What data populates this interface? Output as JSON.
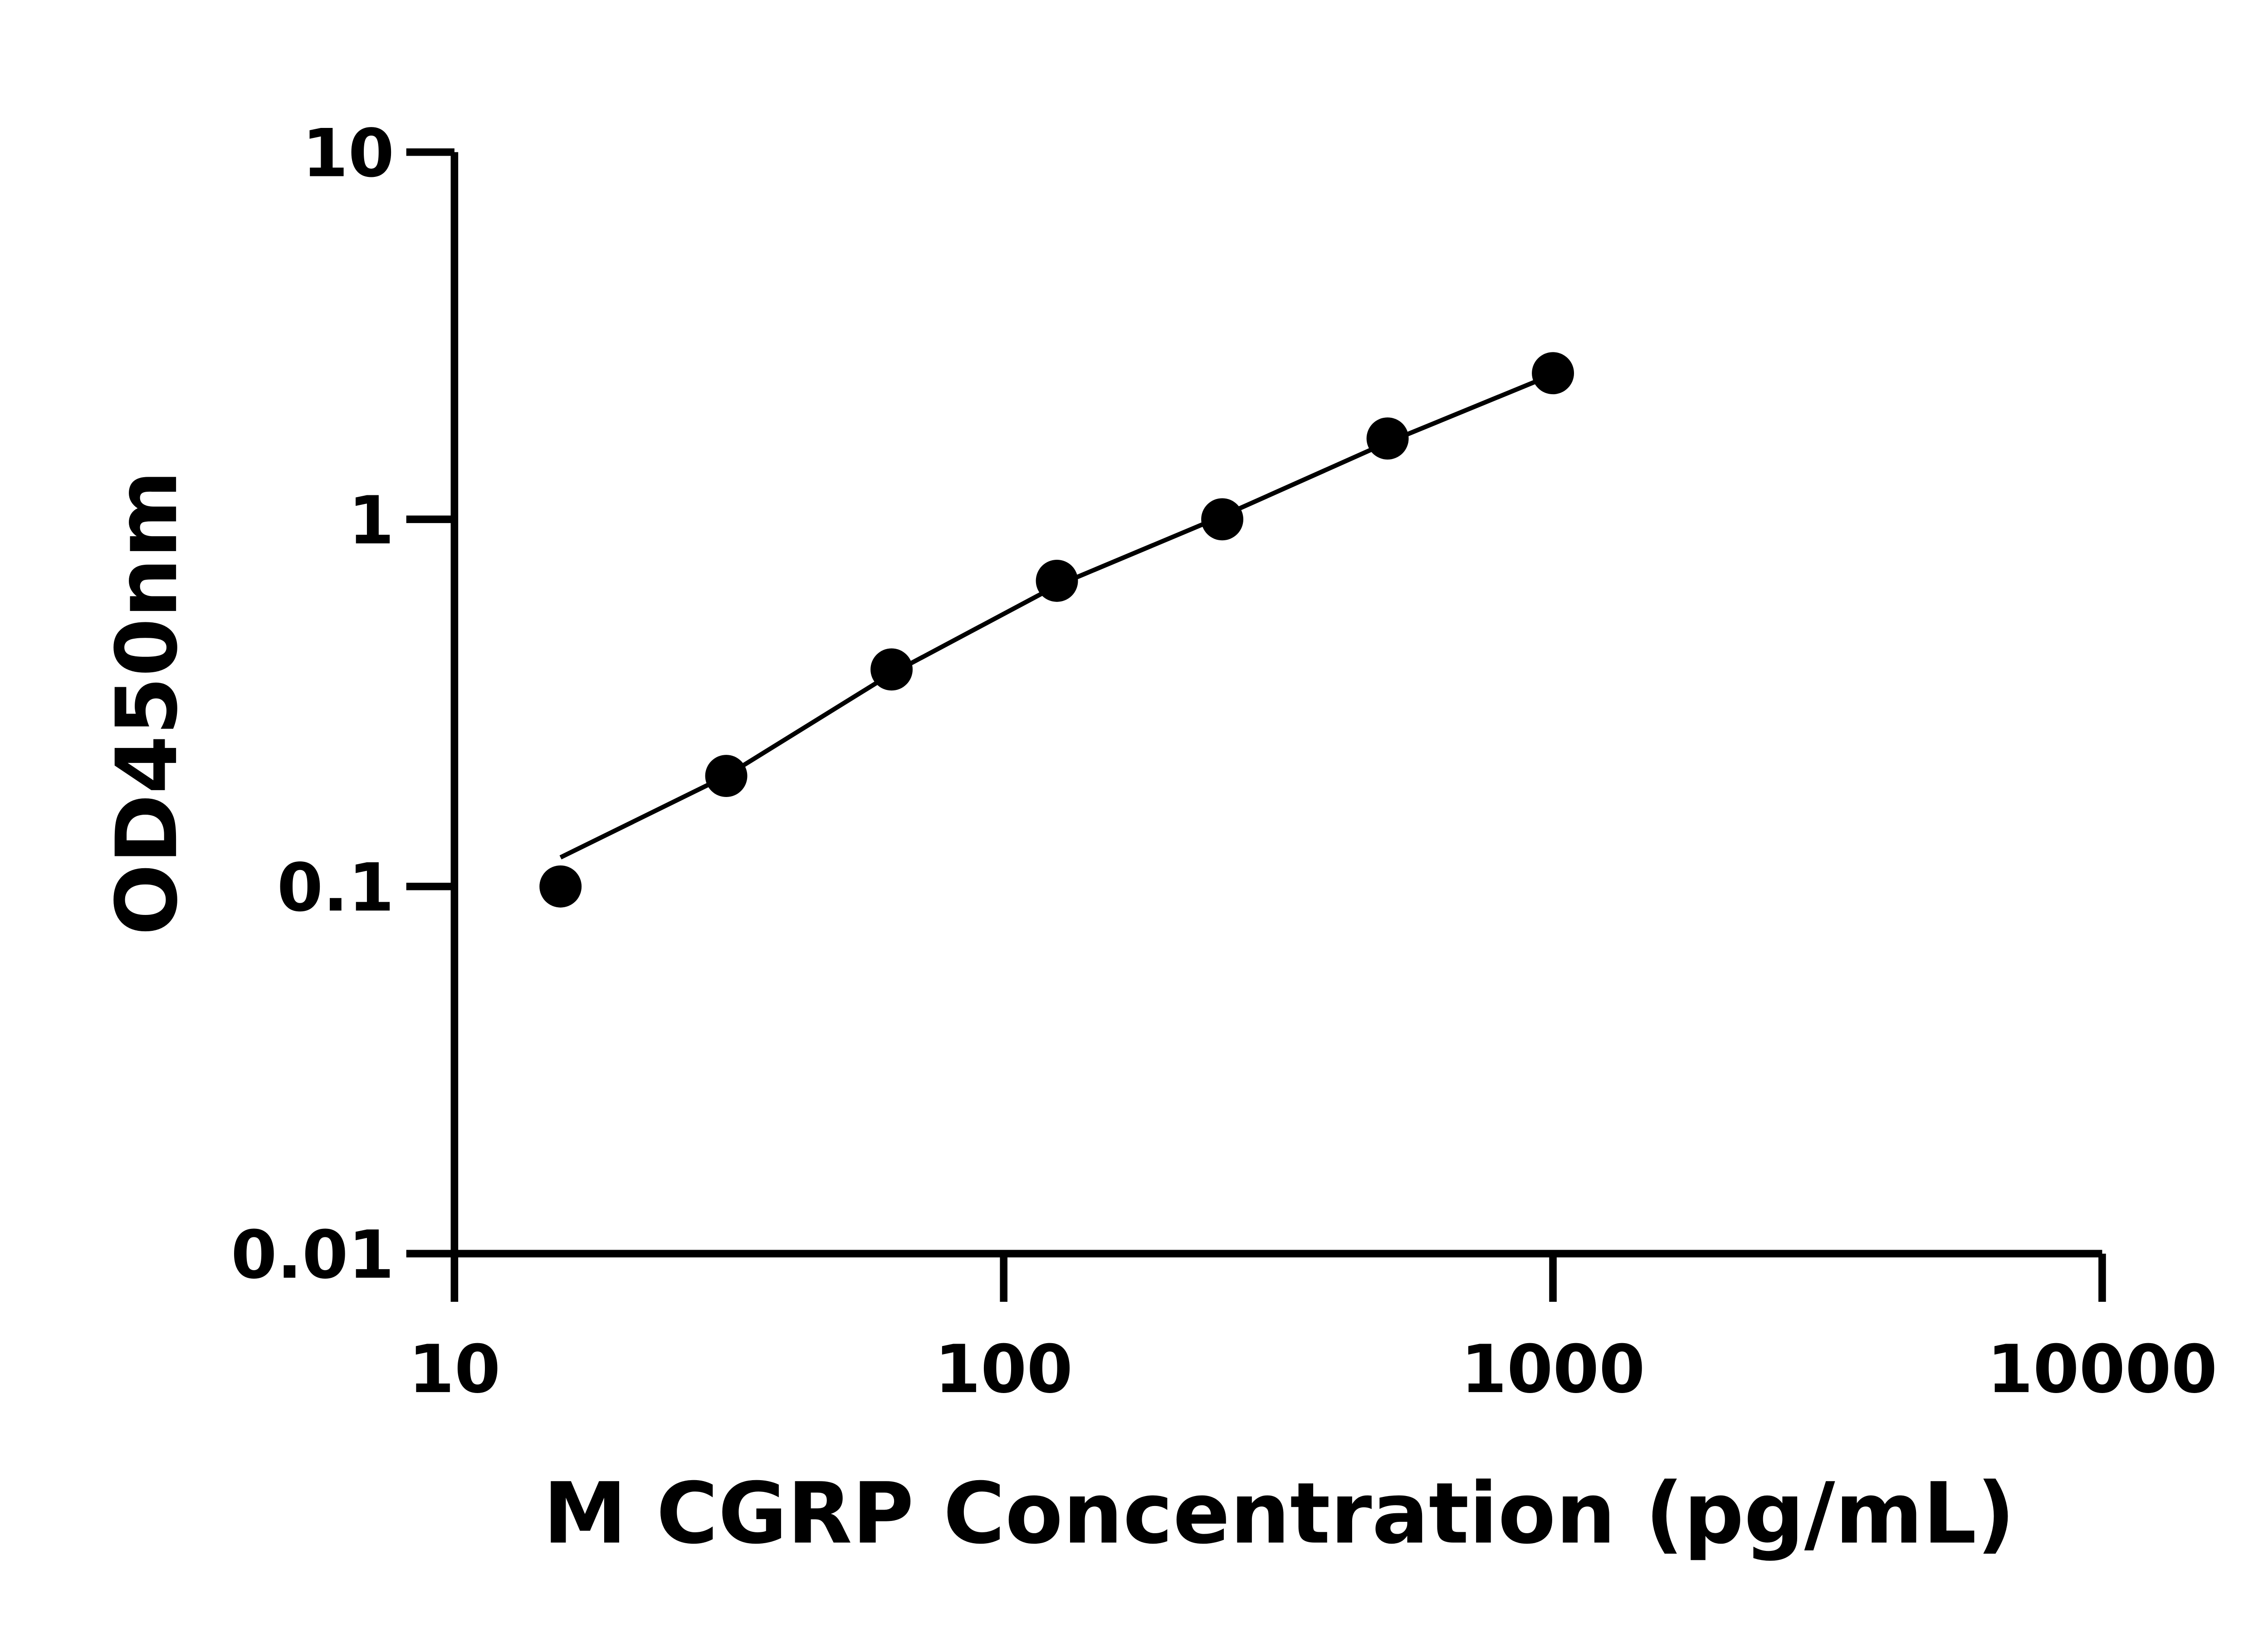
{
  "chart_data": {
    "type": "scatter",
    "title": "",
    "xlabel": "M CGRP Concentration (pg/mL)",
    "ylabel": "OD450nm",
    "xscale": "log",
    "yscale": "log",
    "xlim": [
      10,
      10000
    ],
    "ylim": [
      0.01,
      10
    ],
    "xticks": [
      "10",
      "100",
      "1000",
      "10000"
    ],
    "yticks": [
      "0.01",
      "0.1",
      "1",
      "10"
    ],
    "grid": false,
    "legend": "none",
    "points": [
      {
        "x": 15.6,
        "y": 0.1
      },
      {
        "x": 31.25,
        "y": 0.2
      },
      {
        "x": 62.5,
        "y": 0.39
      },
      {
        "x": 125,
        "y": 0.68
      },
      {
        "x": 250,
        "y": 1.0
      },
      {
        "x": 500,
        "y": 1.66
      },
      {
        "x": 1000,
        "y": 2.5
      }
    ],
    "fit_curve": [
      {
        "x": 15.6,
        "y": 0.12
      },
      {
        "x": 31.25,
        "y": 0.2
      },
      {
        "x": 62.5,
        "y": 0.38
      },
      {
        "x": 125,
        "y": 0.66
      },
      {
        "x": 250,
        "y": 1.02
      },
      {
        "x": 500,
        "y": 1.62
      },
      {
        "x": 1000,
        "y": 2.48
      }
    ],
    "colors": {
      "points": "#000000",
      "line": "#000000",
      "axes": "#000000"
    }
  }
}
